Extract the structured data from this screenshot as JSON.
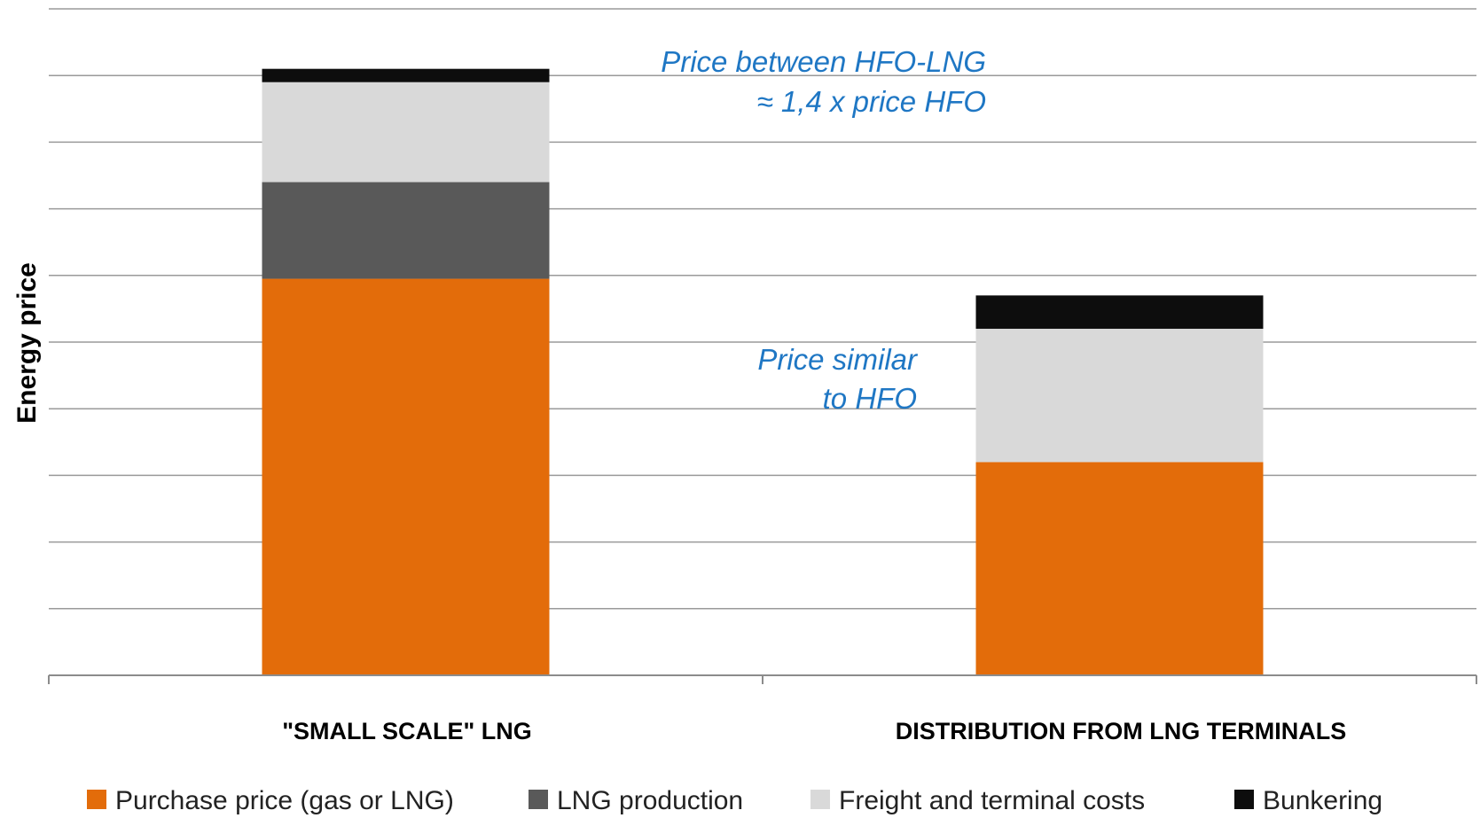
{
  "chart_data": {
    "type": "bar",
    "stacked": true,
    "title": "",
    "xlabel": "",
    "ylabel": "Energy price",
    "ylim": [
      0,
      10
    ],
    "grid": true,
    "legend_position": "bottom",
    "categories": [
      "\"SMALL SCALE\" LNG",
      "DISTRIBUTION FROM LNG TERMINALS"
    ],
    "series": [
      {
        "name": "Purchase price (gas or LNG)",
        "color": "#e36c0a",
        "values": [
          5.95,
          3.2
        ]
      },
      {
        "name": "LNG production",
        "color": "#595959",
        "values": [
          1.45,
          0
        ]
      },
      {
        "name": "Freight and terminal costs",
        "color": "#d9d9d9",
        "values": [
          1.5,
          2.0
        ]
      },
      {
        "name": "Bunkering",
        "color": "#0d0d0d",
        "values": [
          0.2,
          0.5
        ]
      }
    ],
    "annotations": [
      {
        "lines": [
          "Price between HFO-LNG",
          "≈ 1,4 x price HFO"
        ]
      },
      {
        "lines": [
          "Price similar",
          "to HFO"
        ]
      }
    ]
  }
}
